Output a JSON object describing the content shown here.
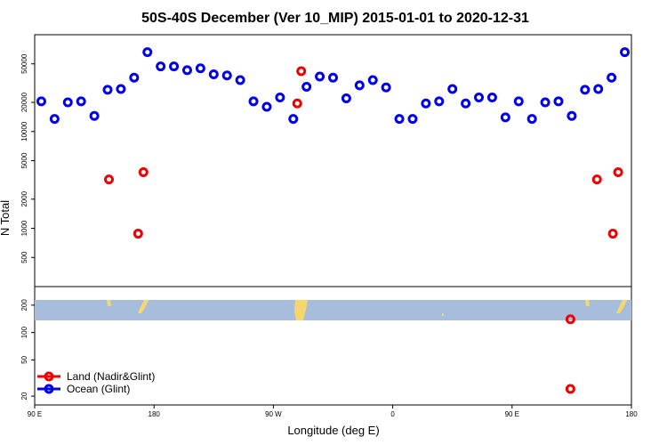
{
  "chart_data": {
    "type": "scatter",
    "title": "50S-40S December (Ver 10_MIP)   2015-01-01 to 2020-12-31",
    "xlabel": "Longitude (deg E)",
    "ylabel": "N Total",
    "x_ticks": [
      {
        "value": 90,
        "label": "90 E"
      },
      {
        "value": 180,
        "label": "180"
      },
      {
        "value": 270,
        "label": "90 W"
      },
      {
        "value": 360,
        "label": "0"
      },
      {
        "value": 450,
        "label": "90 E"
      },
      {
        "value": 540,
        "label": "180"
      }
    ],
    "xlim": [
      90,
      540
    ],
    "log_scale_y": true,
    "top_panel": {
      "ylim": [
        250,
        100000
      ],
      "y_ticks": [
        {
          "value": 500,
          "label": "500"
        },
        {
          "value": 1000,
          "label": "1000"
        },
        {
          "value": 2000,
          "label": "2000"
        },
        {
          "value": 5000,
          "label": "5000"
        },
        {
          "value": 10000,
          "label": "10000"
        },
        {
          "value": 20000,
          "label": "20000"
        },
        {
          "value": 50000,
          "label": "50000"
        }
      ],
      "series": [
        {
          "name": "Ocean (Glint)",
          "color": "#0000ee",
          "points": [
            [
              95,
              20500
            ],
            [
              105,
              13500
            ],
            [
              115,
              20000
            ],
            [
              125,
              20500
            ],
            [
              135,
              14500
            ],
            [
              145,
              27000
            ],
            [
              155,
              27500
            ],
            [
              165,
              36000
            ],
            [
              175,
              66000
            ],
            [
              185,
              47000
            ],
            [
              195,
              47000
            ],
            [
              205,
              43000
            ],
            [
              215,
              45000
            ],
            [
              225,
              39000
            ],
            [
              235,
              38000
            ],
            [
              245,
              34000
            ],
            [
              255,
              20500
            ],
            [
              265,
              18000
            ],
            [
              275,
              22500
            ],
            [
              285,
              13500
            ],
            [
              295,
              29000
            ],
            [
              305,
              37000
            ],
            [
              315,
              36000
            ],
            [
              325,
              22000
            ],
            [
              335,
              30000
            ],
            [
              345,
              34000
            ],
            [
              355,
              28500
            ],
            [
              365,
              13500
            ],
            [
              375,
              13500
            ],
            [
              385,
              19500
            ],
            [
              395,
              20500
            ],
            [
              405,
              27500
            ],
            [
              415,
              19500
            ],
            [
              425,
              22500
            ],
            [
              435,
              22500
            ],
            [
              445,
              14000
            ],
            [
              455,
              20500
            ],
            [
              465,
              13500
            ],
            [
              475,
              20000
            ],
            [
              485,
              20500
            ],
            [
              495,
              14500
            ],
            [
              505,
              27000
            ],
            [
              515,
              27500
            ],
            [
              525,
              36000
            ],
            [
              535,
              66000
            ]
          ]
        },
        {
          "name": "Land (Nadir&Glint)",
          "color": "#ee0000",
          "points": [
            [
              146,
              3200
            ],
            [
              168,
              880
            ],
            [
              172,
              3800
            ],
            [
              288,
              19500
            ],
            [
              291,
              42000
            ],
            [
              514,
              3200
            ],
            [
              526,
              880
            ],
            [
              530,
              3800
            ]
          ]
        }
      ]
    },
    "bottom_panel": {
      "ylim": [
        16,
        320
      ],
      "y_ticks": [
        {
          "value": 20,
          "label": "20"
        },
        {
          "value": 50,
          "label": "50"
        },
        {
          "value": 100,
          "label": "100"
        },
        {
          "value": 200,
          "label": "200"
        }
      ],
      "map_colors": {
        "ocean": "#a6bddb",
        "land": "#f5d76e"
      },
      "series": [
        {
          "name": "Land (Nadir&Glint)",
          "color": "#ee0000",
          "points": [
            [
              494,
              140
            ],
            [
              494,
              24
            ]
          ]
        }
      ]
    },
    "legend": {
      "position": "bottom-left",
      "entries": [
        {
          "label": "Land (Nadir&Glint)",
          "color": "#ee0000"
        },
        {
          "label": "Ocean (Glint)",
          "color": "#0000ee"
        }
      ]
    }
  }
}
